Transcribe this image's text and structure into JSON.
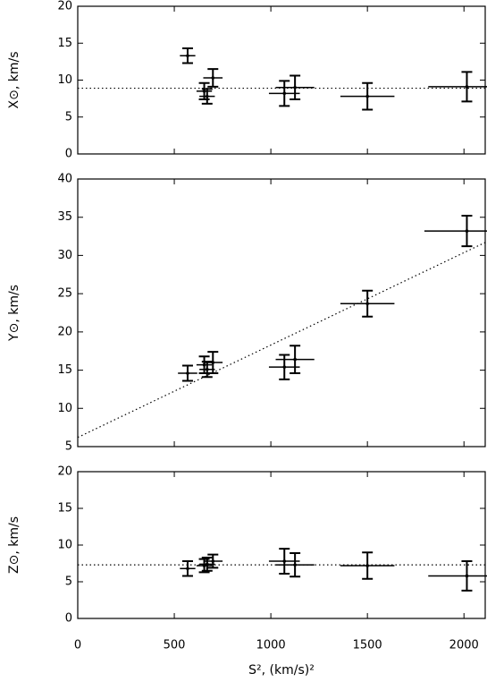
{
  "chart_data": [
    {
      "type": "errorbar",
      "ylabel": "X⊙, km/s",
      "color": "#000000",
      "xlim": [
        0,
        2110
      ],
      "xticks": [
        0,
        500,
        1000,
        1500,
        2000
      ],
      "ylim": [
        0,
        20
      ],
      "yticks": [
        0,
        5,
        10,
        15,
        20
      ],
      "x": [
        569,
        655,
        670,
        700,
        1070,
        1125,
        1500,
        2015
      ],
      "xerr": [
        40,
        40,
        40,
        50,
        80,
        100,
        140,
        200
      ],
      "y": [
        13.3,
        8.5,
        7.8,
        10.3,
        8.2,
        9.0,
        7.8,
        9.1
      ],
      "yerr": [
        1.0,
        1.1,
        1.0,
        1.2,
        1.7,
        1.6,
        1.8,
        2.0
      ],
      "fit": {
        "x": [
          0,
          2110
        ],
        "y": [
          8.9,
          8.9
        ]
      }
    },
    {
      "type": "errorbar",
      "ylabel": "Y⊙, km/s",
      "color": "#000000",
      "xlim": [
        0,
        2110
      ],
      "xticks": [
        0,
        500,
        1000,
        1500,
        2000
      ],
      "ylim": [
        5,
        40
      ],
      "yticks": [
        5,
        10,
        15,
        20,
        25,
        30,
        35,
        40
      ],
      "x": [
        569,
        655,
        670,
        700,
        1070,
        1125,
        1500,
        2015
      ],
      "xerr": [
        50,
        40,
        40,
        50,
        80,
        100,
        140,
        220
      ],
      "y": [
        14.6,
        15.7,
        15.1,
        16.0,
        15.4,
        16.4,
        23.7,
        33.2
      ],
      "yerr": [
        1.0,
        1.1,
        1.0,
        1.4,
        1.6,
        1.8,
        1.7,
        2.0
      ],
      "fit": {
        "x": [
          0,
          2110
        ],
        "y": [
          6.2,
          31.7
        ]
      }
    },
    {
      "type": "errorbar",
      "ylabel": "Z⊙, km/s",
      "xlabel": "S², (km/s)²",
      "color": "#000000",
      "xlim": [
        0,
        2110
      ],
      "xticks": [
        0,
        500,
        1000,
        1500,
        2000
      ],
      "ylim": [
        0,
        20
      ],
      "yticks": [
        0,
        5,
        10,
        15,
        20
      ],
      "x": [
        569,
        655,
        670,
        700,
        1070,
        1125,
        1500,
        2015
      ],
      "xerr": [
        40,
        40,
        40,
        50,
        80,
        100,
        140,
        200
      ],
      "y": [
        6.8,
        7.2,
        7.4,
        7.8,
        7.8,
        7.3,
        7.2,
        5.8
      ],
      "yerr": [
        1.0,
        0.9,
        0.9,
        0.9,
        1.7,
        1.6,
        1.8,
        2.0
      ],
      "fit": {
        "x": [
          0,
          2110
        ],
        "y": [
          7.3,
          7.3
        ]
      }
    }
  ]
}
